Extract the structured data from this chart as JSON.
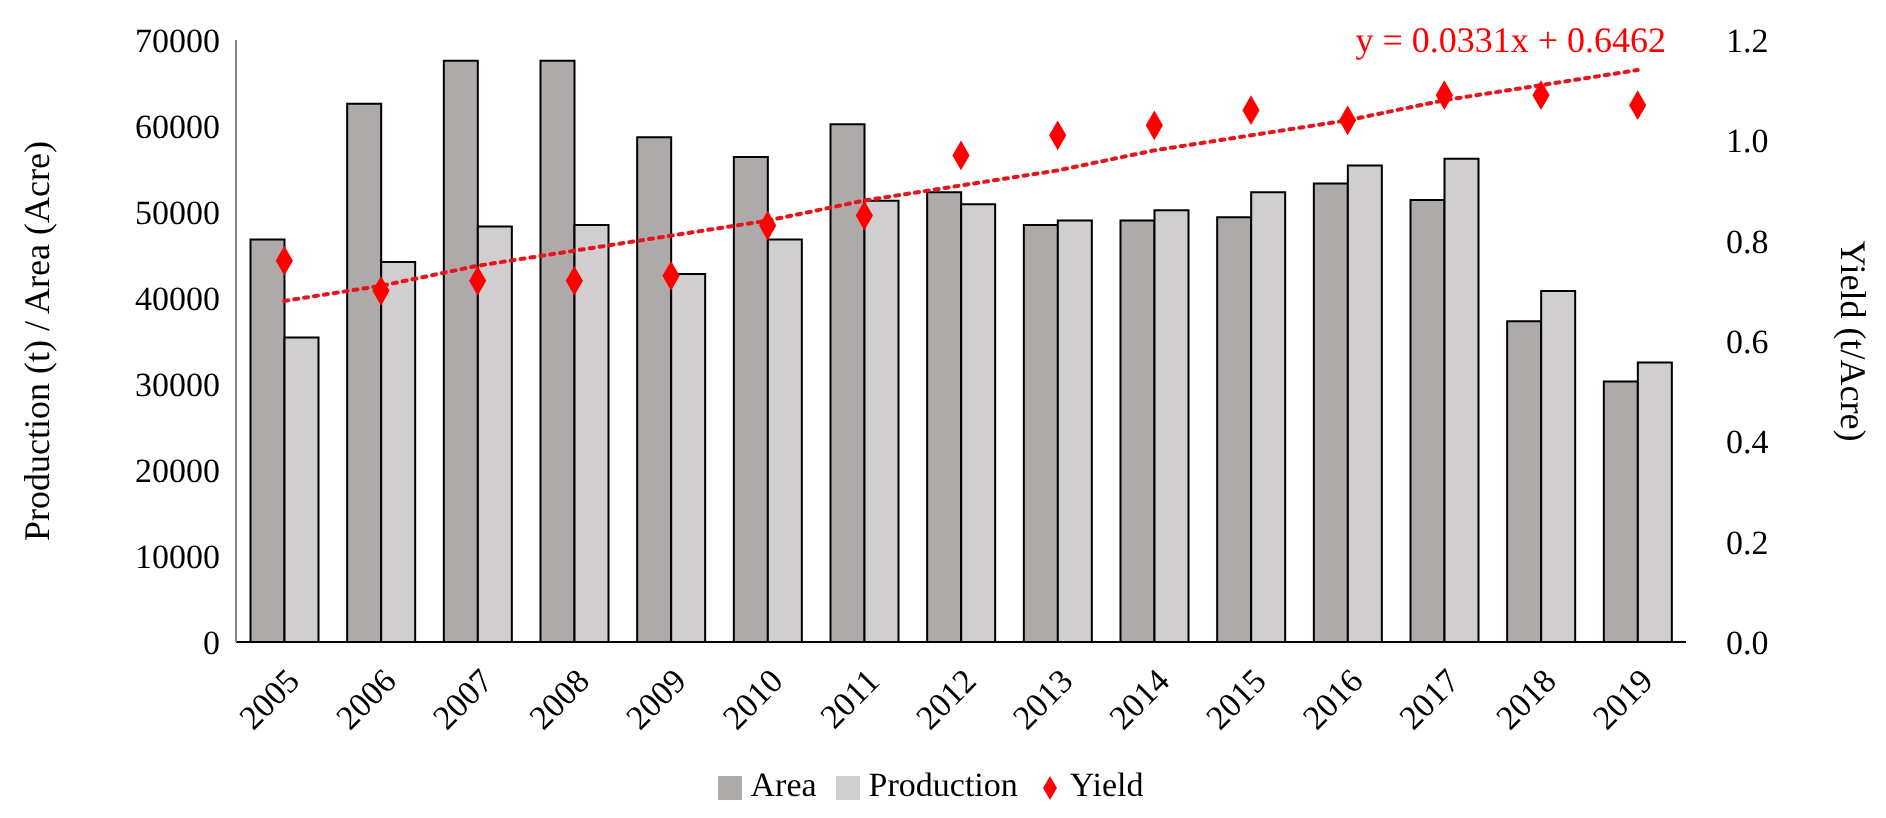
{
  "chart_data": {
    "type": "bar",
    "categories": [
      "2005",
      "2006",
      "2007",
      "2008",
      "2009",
      "2010",
      "2011",
      "2012",
      "2013",
      "2014",
      "2015",
      "2016",
      "2017",
      "2018",
      "2019"
    ],
    "series": [
      {
        "name": "Area",
        "color": "#aeaaaa",
        "values": [
          46800,
          62600,
          67600,
          67600,
          58700,
          56400,
          60200,
          52300,
          48500,
          49000,
          49400,
          53300,
          51400,
          37300,
          30300
        ]
      },
      {
        "name": "Production",
        "color": "#d0cece",
        "values": [
          35400,
          44200,
          48300,
          48500,
          42800,
          46800,
          51300,
          50900,
          49000,
          50200,
          52300,
          55400,
          56200,
          40800,
          32500
        ]
      },
      {
        "name": "Yield",
        "type": "scatter",
        "axis": "y2",
        "marker": "diamond",
        "color": "#ff0000",
        "values": [
          0.76,
          0.7,
          0.72,
          0.72,
          0.73,
          0.83,
          0.85,
          0.97,
          1.01,
          1.03,
          1.06,
          1.04,
          1.09,
          1.09,
          1.07
        ]
      },
      {
        "type": "line",
        "axis": "y2",
        "line_style": "dotted",
        "marker": "none",
        "color": "#e8141b",
        "values": [
          0.68,
          0.71,
          0.75,
          0.78,
          0.81,
          0.84,
          0.88,
          0.91,
          0.94,
          0.98,
          1.01,
          1.04,
          1.08,
          1.11,
          1.14
        ]
      }
    ],
    "ylabel": "Production (t) / Area (Acre)",
    "y2label": "Yield (t/Acre)",
    "ylim": [
      0,
      70000
    ],
    "yticks": [
      0,
      10000,
      20000,
      30000,
      40000,
      50000,
      60000,
      70000
    ],
    "y2lim": [
      0,
      1.2
    ],
    "y2ticks": [
      {
        "value": 0,
        "label": "0.0"
      },
      {
        "value": 0.2,
        "label": "0.2"
      },
      {
        "value": 0.4,
        "label": "0.4"
      },
      {
        "value": 0.6,
        "label": "0.6"
      },
      {
        "value": 0.8,
        "label": "0.8"
      },
      {
        "value": 1,
        "label": "1.0"
      },
      {
        "value": 1.2,
        "label": "1.2"
      }
    ],
    "annotations": [
      "y = 0.0331x + 0.6462"
    ],
    "grid": false,
    "legend": "bottom"
  }
}
